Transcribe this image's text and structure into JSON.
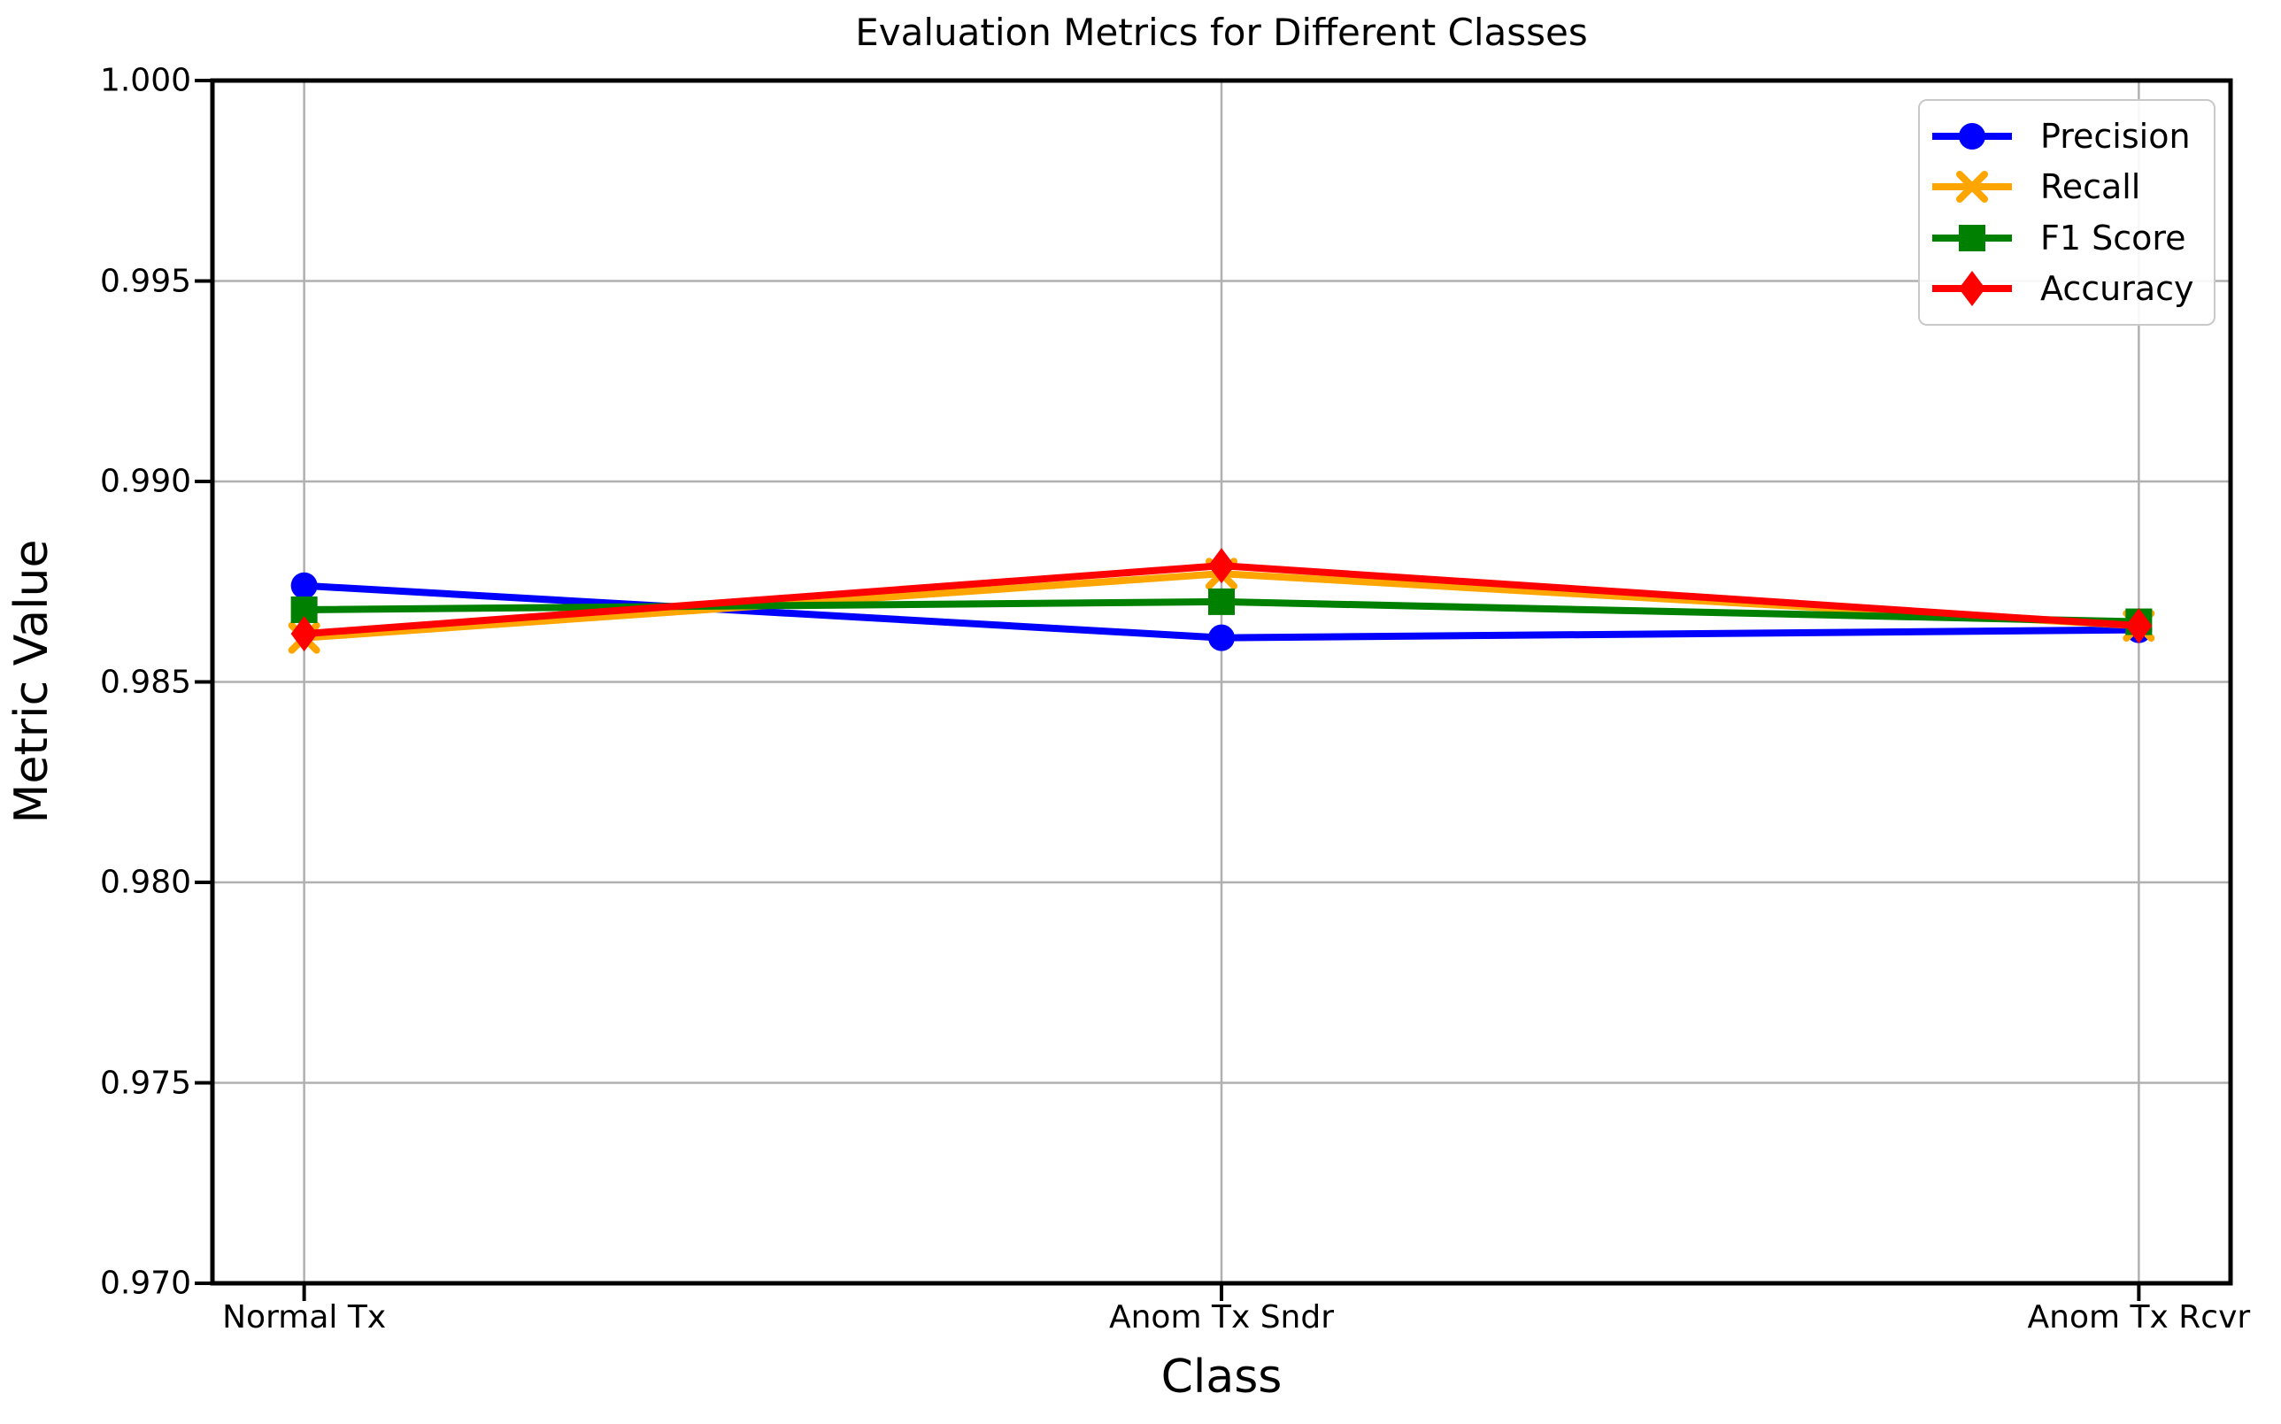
{
  "chart_data": {
    "type": "line",
    "title": "Evaluation Metrics for Different Classes",
    "xlabel": "Class",
    "ylabel": "Metric Value",
    "categories": [
      "Normal Tx",
      "Anom Tx Sndr",
      "Anom Tx Rcvr"
    ],
    "series": [
      {
        "name": "Precision",
        "color": "#0000ff",
        "marker": "circle",
        "values": [
          0.9874,
          0.9861,
          0.9863
        ]
      },
      {
        "name": "Recall",
        "color": "#ffa500",
        "marker": "x",
        "values": [
          0.9861,
          0.9877,
          0.9864
        ]
      },
      {
        "name": "F1 Score",
        "color": "#008000",
        "marker": "square",
        "values": [
          0.9868,
          0.987,
          0.9865
        ]
      },
      {
        "name": "Accuracy",
        "color": "#ff0000",
        "marker": "diamond",
        "values": [
          0.9862,
          0.9879,
          0.9864
        ]
      }
    ],
    "ylim": [
      0.97,
      1.0
    ],
    "yticks": [
      "1.000",
      "0.995",
      "0.990",
      "0.985",
      "0.980",
      "0.975",
      "0.970"
    ],
    "grid": true,
    "grid_color": "#b0b0b0",
    "axis_color": "#000000",
    "legend_position": "upper right"
  }
}
